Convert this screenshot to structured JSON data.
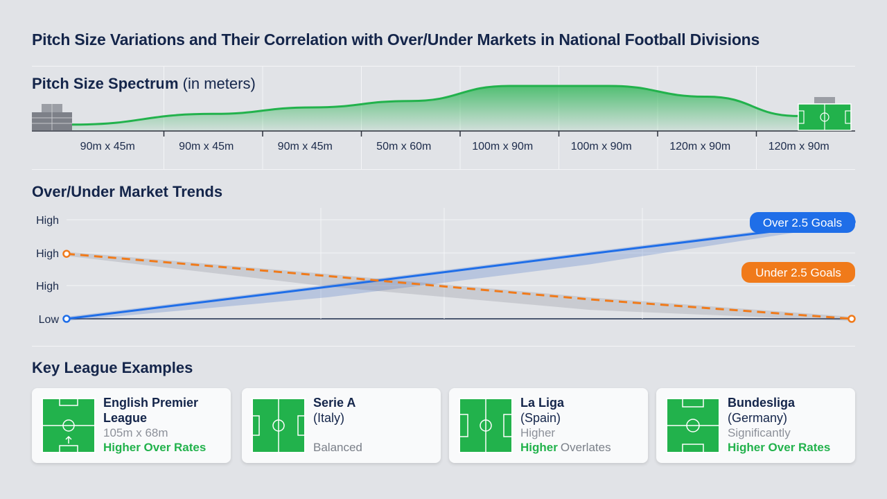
{
  "title": "Pitch Size Variations and Their Correlation with Over/Under Markets in National Football Divisions",
  "colors": {
    "green": "#22b24c",
    "blue": "#1f6ee8",
    "orange": "#f07a1a",
    "navy": "#14254a"
  },
  "spectrum": {
    "title": "Pitch Size Spectrum",
    "unit": "(in meters)",
    "left_icon": "stadium-crowd-icon",
    "right_icon": "football-pitch-icon"
  },
  "trends": {
    "title": "Over/Under Market Trends"
  },
  "leagues": {
    "title": "Key League Examples",
    "cards": [
      {
        "name": "English Premier",
        "name2": "League",
        "detail": "105m x 68m",
        "trend": "Higher Over Rates",
        "trend_suffix": ""
      },
      {
        "name": "Serie A",
        "name2": "(Italy)",
        "detail": "",
        "trend": "",
        "trend_suffix": "Balanced"
      },
      {
        "name": "La Liga",
        "name2": "(Spain)",
        "detail": "Higher",
        "trend": "Higher",
        "trend_suffix": "Overlates"
      },
      {
        "name": "Bundesliga",
        "name2": "(Germany)",
        "detail": "Significantly",
        "trend": "Higher Over Rates",
        "trend_suffix": ""
      }
    ]
  },
  "chart_data": [
    {
      "type": "area",
      "title": "Pitch Size Spectrum (in meters)",
      "categories": [
        "90m x 45m",
        "90m x 45m",
        "90m x 45m",
        "50m x 60m",
        "100m x 90m",
        "100m x 90m",
        "120m x 90m",
        "120m x 90m"
      ],
      "values": [
        0.1,
        0.35,
        0.5,
        0.65,
        1.0,
        1.0,
        0.75,
        0.3
      ],
      "grid": true
    },
    {
      "type": "line",
      "title": "Over/Under Market Trends",
      "y_tick_labels": [
        "High",
        "High",
        "High",
        "Low"
      ],
      "series": [
        {
          "name": "Over 2.5 Goals",
          "values": [
            0.0,
            0.33,
            0.67,
            1.0
          ]
        },
        {
          "name": "Under 2.5 Goals",
          "values": [
            0.67,
            0.44,
            0.2,
            0.0
          ]
        }
      ],
      "grid": true
    }
  ]
}
